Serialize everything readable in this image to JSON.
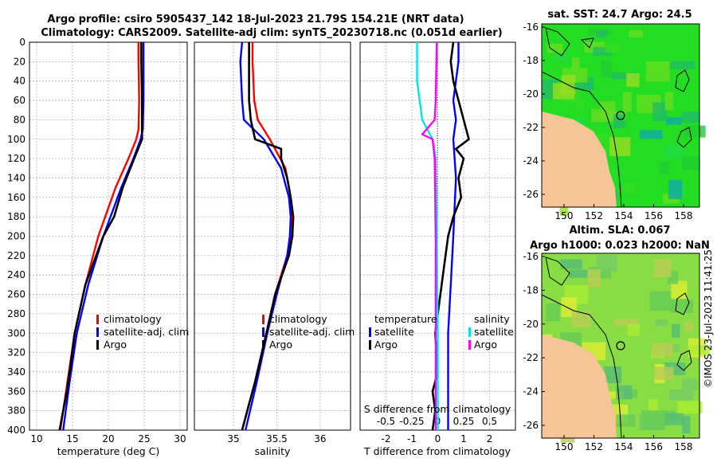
{
  "title_line1": "Argo profile: csiro 5905437_142 18-Jul-2023 21.79S 154.21E (NRT data)",
  "title_line2": "Climatology: CARS2009. Satellite-adj clim: synTS_20230718.nc (0.051d earlier)",
  "watermark": "©IMOS 23-Jul-2023 11:41:25",
  "colors": {
    "climatology": "#ff0000",
    "satellite": "#0000ff",
    "argo": "#000000",
    "sal_sat": "#00e5e5",
    "sal_argo": "#ff00ff"
  },
  "chart_data": [
    {
      "type": "line",
      "name": "temperature",
      "xlabel": "temperature (deg C)",
      "ylabel": "",
      "xlim": [
        9,
        31
      ],
      "ylim": [
        400,
        0
      ],
      "xticks": [
        "10",
        "15",
        "20",
        "25",
        "30"
      ],
      "yticks": [
        "0",
        "20",
        "40",
        "60",
        "80",
        "100",
        "120",
        "140",
        "160",
        "180",
        "200",
        "220",
        "240",
        "260",
        "280",
        "300",
        "320",
        "340",
        "360",
        "380",
        "400"
      ],
      "legend": [
        "climatology",
        "satellite-adj. clim",
        "Argo"
      ],
      "series": [
        {
          "name": "climatology",
          "depth": [
            0,
            20,
            60,
            90,
            100,
            120,
            150,
            200,
            250,
            300,
            350,
            400
          ],
          "values": [
            24.2,
            24.2,
            24.3,
            24.2,
            23.9,
            22.8,
            21.0,
            18.6,
            16.8,
            15.3,
            14.3,
            13.3
          ]
        },
        {
          "name": "satellite-adj. clim",
          "depth": [
            0,
            20,
            60,
            90,
            100,
            120,
            150,
            200,
            250,
            300,
            350,
            400
          ],
          "values": [
            24.9,
            24.9,
            24.9,
            24.8,
            24.5,
            23.5,
            21.8,
            19.3,
            17.2,
            15.6,
            14.6,
            13.7
          ]
        },
        {
          "name": "Argo",
          "depth": [
            0,
            20,
            60,
            90,
            100,
            120,
            150,
            180,
            200,
            250,
            300,
            340,
            360,
            380,
            400
          ],
          "values": [
            24.6,
            24.6,
            24.7,
            24.7,
            24.7,
            23.6,
            22.0,
            20.8,
            19.3,
            16.8,
            15.3,
            14.6,
            14.2,
            13.7,
            13.2
          ]
        }
      ]
    },
    {
      "type": "line",
      "name": "salinity",
      "xlabel": "salinity",
      "ylabel": "",
      "xlim": [
        34.55,
        36.35
      ],
      "ylim": [
        400,
        0
      ],
      "xticks": [
        "35",
        "35.5",
        "36"
      ],
      "legend": [
        "climatology",
        "satellite-adj. clim",
        "Argo"
      ],
      "series": [
        {
          "name": "climatology",
          "depth": [
            0,
            20,
            60,
            80,
            100,
            130,
            160,
            180,
            200,
            220,
            260,
            300,
            350,
            400
          ],
          "values": [
            35.22,
            35.22,
            35.24,
            35.28,
            35.42,
            35.6,
            35.66,
            35.67,
            35.66,
            35.62,
            35.48,
            35.38,
            35.25,
            35.1
          ],
          "color_key": "climatology"
        },
        {
          "name": "satellite-adj. clim",
          "depth": [
            0,
            20,
            60,
            80,
            100,
            130,
            160,
            180,
            200,
            220,
            260,
            300,
            350,
            400
          ],
          "values": [
            35.1,
            35.08,
            35.1,
            35.12,
            35.35,
            35.55,
            35.64,
            35.66,
            35.65,
            35.62,
            35.5,
            35.39,
            35.27,
            35.14
          ],
          "color_key": "satellite"
        },
        {
          "name": "Argo",
          "depth": [
            0,
            20,
            60,
            80,
            100,
            110,
            120,
            140,
            160,
            180,
            200,
            220,
            260,
            300,
            350,
            380,
            400
          ],
          "values": [
            35.18,
            35.18,
            35.18,
            35.2,
            35.25,
            35.55,
            35.55,
            35.62,
            35.66,
            35.69,
            35.68,
            35.64,
            35.48,
            35.38,
            35.25,
            35.16,
            35.1
          ],
          "color_key": "argo"
        }
      ]
    },
    {
      "type": "line",
      "name": "difference",
      "xlabel": "T difference from climatology",
      "xlabel_top": "S difference from climatology",
      "xlim": [
        -3,
        3
      ],
      "ylim": [
        400,
        0
      ],
      "xticks": [
        "-2",
        "-1",
        "0",
        "1",
        "2"
      ],
      "xticks_top": [
        "-0.5",
        "-0.25",
        "0",
        "0.25",
        "0.5"
      ],
      "legend_temperature": "temperature",
      "legend_salinity": "salinity",
      "legend_entries_T": [
        "satellite",
        "Argo"
      ],
      "legend_entries_S": [
        "satellite",
        "Argo"
      ],
      "series": [
        {
          "name": "T satellite",
          "depth": [
            0,
            20,
            60,
            80,
            100,
            140,
            200,
            250,
            300,
            350,
            400
          ],
          "values": [
            0.8,
            0.8,
            0.6,
            0.7,
            0.6,
            0.7,
            0.6,
            0.5,
            0.4,
            0.4,
            0.4
          ],
          "color_key": "satellite"
        },
        {
          "name": "T Argo",
          "depth": [
            0,
            20,
            40,
            60,
            80,
            100,
            110,
            120,
            140,
            160,
            180,
            200,
            240,
            260,
            300,
            340,
            360,
            380,
            400
          ],
          "values": [
            0.6,
            0.5,
            0.6,
            0.8,
            1.0,
            1.2,
            0.7,
            1.0,
            0.8,
            0.9,
            0.6,
            0.4,
            0.2,
            0.1,
            -0.1,
            0.0,
            -0.2,
            -0.1,
            -0.2
          ],
          "color_key": "argo"
        },
        {
          "name": "S satellite",
          "depth": [
            0,
            40,
            80,
            100,
            120,
            200,
            300,
            400
          ],
          "values": [
            -0.2,
            -0.2,
            -0.15,
            -0.05,
            -0.02,
            -0.01,
            0.0,
            0.0
          ],
          "color_key": "sal_sat"
        },
        {
          "name": "S Argo",
          "depth": [
            0,
            60,
            80,
            95,
            100,
            120,
            200,
            300,
            400
          ],
          "values": [
            -0.01,
            -0.02,
            -0.03,
            -0.15,
            -0.05,
            -0.03,
            -0.02,
            -0.02,
            -0.02
          ],
          "color_key": "sal_argo"
        }
      ]
    }
  ],
  "maps": [
    {
      "title": "sat. SST: 24.7 Argo: 24.5",
      "lon_ticks": [
        "150",
        "152",
        "154",
        "156",
        "158"
      ],
      "lat_ticks": [
        "-16",
        "-18",
        "-20",
        "-22",
        "-24",
        "-26"
      ]
    },
    {
      "title_line1": "Altim. SLA: 0.067",
      "title_line2": "Argo h1000: 0.023 h2000: NaN",
      "lon_ticks": [
        "150",
        "152",
        "154",
        "156",
        "158"
      ],
      "lat_ticks": [
        "-16",
        "-18",
        "-20",
        "-22",
        "-24",
        "-26"
      ]
    }
  ]
}
